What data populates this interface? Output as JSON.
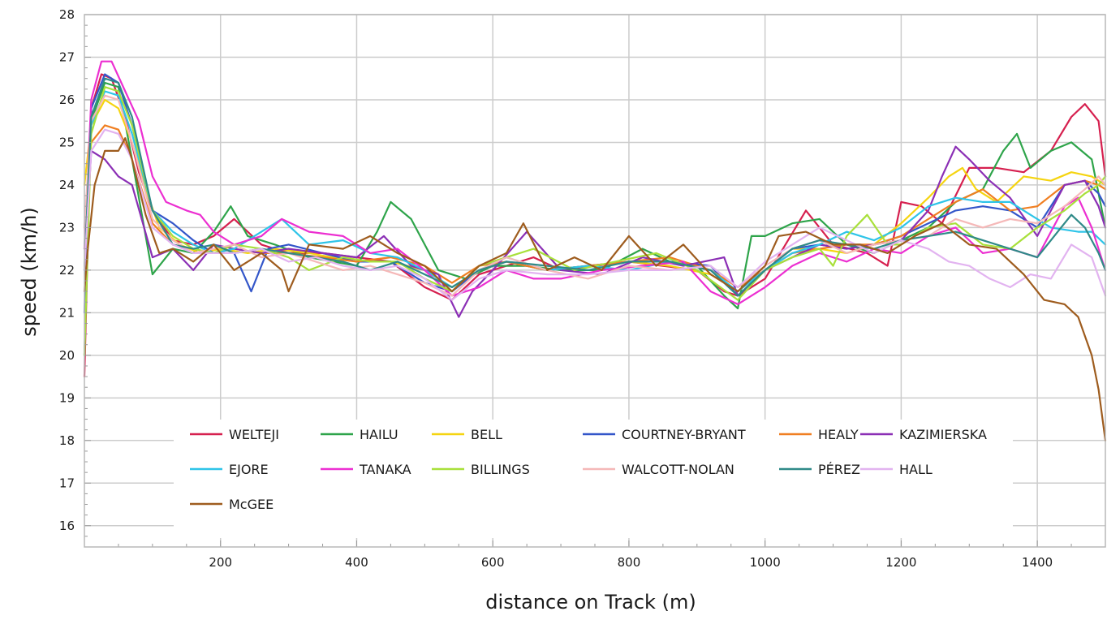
{
  "chart_data": {
    "type": "line",
    "xlabel": "distance on Track (m)",
    "ylabel": "speed (km/h)",
    "xlim": [
      0,
      1500
    ],
    "ylim": [
      15.5,
      28
    ],
    "x_ticks": [
      200,
      400,
      600,
      800,
      1000,
      1200,
      1400
    ],
    "y_ticks": [
      16,
      17,
      18,
      19,
      20,
      21,
      22,
      23,
      24,
      25,
      26,
      27,
      28
    ],
    "grid": true,
    "legend": {
      "placement": "bottom-left",
      "columns": 6
    },
    "series": [
      {
        "name": "WELTEJI",
        "color": "#d6204f",
        "x": [
          0,
          10,
          25,
          40,
          60,
          80,
          100,
          130,
          160,
          190,
          220,
          260,
          300,
          350,
          400,
          450,
          500,
          540,
          580,
          620,
          660,
          700,
          750,
          800,
          850,
          900,
          940,
          960,
          1000,
          1030,
          1060,
          1100,
          1150,
          1180,
          1200,
          1230,
          1260,
          1300,
          1340,
          1380,
          1420,
          1450,
          1470,
          1490,
          1500
        ],
        "y": [
          19.5,
          25.8,
          26.6,
          26.5,
          25.6,
          24.3,
          23.4,
          22.7,
          22.6,
          22.8,
          23.2,
          22.6,
          22.4,
          22.4,
          22.3,
          22.2,
          21.6,
          21.3,
          21.9,
          22.1,
          22.3,
          22.0,
          22.1,
          22.2,
          22.1,
          22.0,
          21.5,
          21.4,
          21.8,
          22.6,
          23.4,
          22.6,
          22.4,
          22.1,
          23.6,
          23.5,
          23.1,
          24.4,
          24.4,
          24.3,
          24.8,
          25.6,
          25.9,
          25.5,
          24.2
        ]
      },
      {
        "name": "HAILU",
        "color": "#2ea44a",
        "x": [
          0,
          10,
          30,
          50,
          70,
          90,
          100,
          130,
          160,
          190,
          215,
          240,
          280,
          330,
          400,
          430,
          450,
          480,
          520,
          560,
          600,
          650,
          700,
          760,
          820,
          860,
          900,
          940,
          960,
          980,
          1000,
          1040,
          1080,
          1120,
          1160,
          1200,
          1240,
          1280,
          1320,
          1350,
          1370,
          1390,
          1420,
          1450,
          1480,
          1500
        ],
        "y": [
          20.0,
          25.5,
          26.4,
          26.3,
          24.6,
          22.8,
          21.9,
          22.5,
          22.4,
          22.9,
          23.5,
          22.8,
          22.6,
          22.3,
          22.1,
          22.9,
          23.6,
          23.2,
          22.0,
          21.8,
          22.1,
          22.1,
          22.0,
          22.0,
          22.5,
          22.2,
          22.1,
          21.4,
          21.1,
          22.8,
          22.8,
          23.1,
          23.2,
          22.6,
          22.4,
          22.7,
          23.0,
          23.6,
          23.9,
          24.8,
          25.2,
          24.4,
          24.8,
          25.0,
          24.6,
          23.0
        ]
      },
      {
        "name": "BELL",
        "color": "#f5d410",
        "x": [
          0,
          10,
          30,
          50,
          70,
          90,
          110,
          140,
          170,
          200,
          240,
          280,
          330,
          400,
          450,
          500,
          540,
          580,
          620,
          680,
          740,
          800,
          860,
          920,
          960,
          1000,
          1040,
          1080,
          1120,
          1160,
          1200,
          1240,
          1270,
          1290,
          1310,
          1340,
          1380,
          1420,
          1450,
          1480,
          1500
        ],
        "y": [
          24.0,
          25.4,
          26.0,
          25.8,
          25.0,
          23.9,
          23.0,
          22.6,
          22.4,
          22.5,
          22.4,
          22.5,
          22.4,
          22.2,
          22.2,
          22.0,
          21.6,
          22.0,
          22.2,
          22.0,
          22.1,
          22.2,
          22.1,
          21.9,
          21.5,
          22.0,
          22.5,
          22.5,
          22.4,
          22.6,
          23.1,
          23.7,
          24.2,
          24.4,
          23.9,
          23.6,
          24.2,
          24.1,
          24.3,
          24.2,
          24.0
        ]
      },
      {
        "name": "COURTNEY-BRYANT",
        "color": "#3356c9",
        "x": [
          0,
          10,
          30,
          50,
          70,
          100,
          130,
          160,
          190,
          220,
          245,
          270,
          300,
          350,
          400,
          450,
          500,
          540,
          580,
          620,
          680,
          740,
          800,
          860,
          920,
          960,
          1000,
          1040,
          1080,
          1120,
          1160,
          1200,
          1240,
          1280,
          1320,
          1360,
          1400,
          1440,
          1470,
          1490,
          1500
        ],
        "y": [
          21.0,
          25.8,
          26.6,
          26.4,
          25.4,
          23.4,
          23.1,
          22.7,
          22.4,
          22.4,
          21.5,
          22.5,
          22.6,
          22.4,
          22.2,
          22.2,
          21.7,
          21.5,
          22.0,
          22.2,
          22.0,
          22.1,
          22.2,
          22.2,
          22.1,
          21.4,
          22.0,
          22.5,
          22.6,
          22.5,
          22.6,
          22.8,
          23.1,
          23.4,
          23.5,
          23.4,
          23.0,
          24.0,
          24.1,
          23.8,
          23.5
        ]
      },
      {
        "name": "HEALY",
        "color": "#f07f22",
        "x": [
          0,
          10,
          30,
          50,
          70,
          100,
          130,
          160,
          190,
          220,
          260,
          300,
          350,
          400,
          450,
          500,
          540,
          580,
          620,
          680,
          740,
          800,
          860,
          920,
          960,
          1000,
          1040,
          1080,
          1120,
          1160,
          1200,
          1240,
          1280,
          1320,
          1360,
          1400,
          1440,
          1470,
          1490,
          1500
        ],
        "y": [
          23.0,
          25.0,
          25.4,
          25.3,
          24.6,
          23.1,
          22.6,
          22.5,
          22.4,
          22.5,
          22.4,
          22.4,
          22.3,
          22.2,
          22.3,
          22.1,
          21.7,
          22.1,
          22.2,
          22.0,
          22.1,
          22.2,
          22.3,
          22.0,
          21.6,
          22.0,
          22.4,
          22.5,
          22.6,
          22.6,
          22.8,
          23.2,
          23.6,
          23.9,
          23.4,
          23.5,
          24.0,
          24.1,
          24.0,
          23.9
        ]
      },
      {
        "name": "KAZIMIERSKA",
        "color": "#8b2fb5",
        "x": [
          0,
          10,
          30,
          50,
          70,
          100,
          130,
          160,
          190,
          220,
          260,
          300,
          350,
          400,
          440,
          480,
          520,
          550,
          570,
          600,
          650,
          700,
          760,
          820,
          880,
          940,
          960,
          1000,
          1040,
          1080,
          1120,
          1160,
          1200,
          1240,
          1260,
          1280,
          1300,
          1330,
          1360,
          1400,
          1440,
          1470,
          1490,
          1500
        ],
        "y": [
          22.0,
          24.8,
          24.6,
          24.2,
          24.0,
          22.3,
          22.5,
          22.0,
          22.6,
          22.5,
          22.4,
          22.5,
          22.4,
          22.3,
          22.8,
          22.1,
          21.9,
          20.9,
          21.5,
          22.0,
          22.9,
          22.0,
          21.9,
          22.3,
          22.1,
          22.3,
          21.4,
          22.0,
          22.3,
          22.6,
          22.5,
          22.6,
          22.7,
          23.4,
          24.2,
          24.9,
          24.6,
          24.1,
          23.7,
          22.8,
          24.0,
          24.1,
          23.5,
          23.0
        ]
      },
      {
        "name": "EJORE",
        "color": "#2ec4e8",
        "x": [
          0,
          10,
          30,
          50,
          70,
          100,
          130,
          160,
          190,
          220,
          260,
          290,
          330,
          380,
          420,
          460,
          500,
          540,
          580,
          620,
          680,
          740,
          800,
          860,
          920,
          960,
          1000,
          1040,
          1080,
          1120,
          1160,
          1200,
          1240,
          1280,
          1320,
          1360,
          1390,
          1420,
          1460,
          1480,
          1500
        ],
        "y": [
          22.5,
          25.4,
          26.2,
          26.1,
          25.2,
          23.4,
          22.9,
          22.6,
          22.4,
          22.5,
          22.9,
          23.2,
          22.6,
          22.7,
          22.4,
          22.3,
          22.0,
          21.6,
          22.0,
          22.3,
          22.0,
          22.1,
          22.0,
          22.2,
          22.0,
          21.5,
          22.0,
          22.4,
          22.6,
          22.9,
          22.7,
          23.0,
          23.5,
          23.7,
          23.6,
          23.6,
          23.3,
          23.0,
          22.9,
          22.9,
          22.6
        ]
      },
      {
        "name": "TANAKA",
        "color": "#ec2fd1",
        "x": [
          0,
          10,
          25,
          40,
          60,
          80,
          100,
          120,
          150,
          170,
          190,
          220,
          260,
          290,
          330,
          380,
          420,
          460,
          500,
          540,
          580,
          620,
          660,
          700,
          760,
          820,
          880,
          920,
          960,
          1000,
          1040,
          1080,
          1120,
          1160,
          1200,
          1240,
          1280,
          1320,
          1360,
          1400,
          1440,
          1460,
          1480,
          1500
        ],
        "y": [
          22.5,
          26.0,
          26.9,
          26.9,
          26.2,
          25.5,
          24.2,
          23.6,
          23.4,
          23.3,
          22.9,
          22.6,
          22.8,
          23.2,
          22.9,
          22.8,
          22.4,
          22.5,
          22.0,
          21.4,
          21.6,
          22.0,
          21.8,
          21.8,
          22.0,
          22.1,
          22.2,
          21.5,
          21.2,
          21.6,
          22.1,
          22.4,
          22.2,
          22.5,
          22.4,
          22.8,
          23.0,
          22.4,
          22.5,
          22.3,
          23.5,
          23.7,
          23.0,
          22.0
        ]
      },
      {
        "name": "BILLINGS",
        "color": "#a8e03a",
        "x": [
          0,
          10,
          30,
          50,
          70,
          100,
          130,
          160,
          190,
          220,
          260,
          300,
          330,
          380,
          420,
          460,
          500,
          540,
          580,
          620,
          660,
          720,
          780,
          840,
          900,
          960,
          1000,
          1040,
          1080,
          1100,
          1120,
          1150,
          1180,
          1200,
          1240,
          1280,
          1320,
          1360,
          1400,
          1440,
          1470,
          1490,
          1500
        ],
        "y": [
          20.0,
          25.2,
          26.3,
          26.2,
          25.4,
          23.4,
          22.8,
          22.5,
          22.4,
          22.6,
          22.5,
          22.3,
          22.0,
          22.3,
          22.2,
          22.2,
          21.8,
          21.5,
          22.1,
          22.3,
          22.5,
          22.0,
          22.2,
          22.4,
          22.0,
          21.3,
          22.0,
          22.3,
          22.5,
          22.1,
          22.8,
          23.3,
          22.6,
          22.6,
          23.0,
          23.1,
          22.6,
          22.5,
          23.0,
          23.4,
          23.8,
          24.0,
          24.2
        ]
      },
      {
        "name": "WALCOTT-NOLAN",
        "color": "#f5b8b8",
        "x": [
          0,
          10,
          30,
          50,
          70,
          100,
          130,
          160,
          190,
          220,
          260,
          300,
          340,
          380,
          420,
          460,
          500,
          540,
          580,
          620,
          680,
          740,
          800,
          860,
          920,
          960,
          1000,
          1040,
          1080,
          1120,
          1160,
          1200,
          1240,
          1280,
          1320,
          1360,
          1400,
          1440,
          1470,
          1490,
          1500
        ],
        "y": [
          23.0,
          25.5,
          26.1,
          26.0,
          25.0,
          23.2,
          22.7,
          22.4,
          22.5,
          22.6,
          22.3,
          22.4,
          22.2,
          22.0,
          22.1,
          21.9,
          21.7,
          21.4,
          22.0,
          22.3,
          22.0,
          21.8,
          22.1,
          22.0,
          22.1,
          21.6,
          22.1,
          22.5,
          22.7,
          22.4,
          22.6,
          22.7,
          22.8,
          23.2,
          23.0,
          23.2,
          23.1,
          23.5,
          23.9,
          24.2,
          24.0
        ]
      },
      {
        "name": "PÉREZ",
        "color": "#2f8a88",
        "x": [
          0,
          10,
          30,
          50,
          70,
          100,
          130,
          160,
          190,
          220,
          260,
          300,
          340,
          380,
          420,
          460,
          500,
          540,
          580,
          620,
          680,
          740,
          800,
          860,
          920,
          960,
          1000,
          1040,
          1080,
          1120,
          1160,
          1200,
          1240,
          1280,
          1320,
          1360,
          1400,
          1430,
          1450,
          1470,
          1490,
          1500
        ],
        "y": [
          22.0,
          25.6,
          26.5,
          26.4,
          25.6,
          23.4,
          22.6,
          22.5,
          22.6,
          22.4,
          22.5,
          22.4,
          22.3,
          22.2,
          22.0,
          22.2,
          21.9,
          21.6,
          22.0,
          22.2,
          22.1,
          22.0,
          22.2,
          22.2,
          22.0,
          21.4,
          22.0,
          22.5,
          22.7,
          22.6,
          22.5,
          22.7,
          22.8,
          22.9,
          22.7,
          22.5,
          22.3,
          22.9,
          23.3,
          23.0,
          22.4,
          22.0
        ]
      },
      {
        "name": "HALL",
        "color": "#e2b3f0",
        "x": [
          0,
          10,
          30,
          50,
          70,
          100,
          130,
          160,
          190,
          220,
          260,
          300,
          340,
          380,
          420,
          460,
          500,
          540,
          580,
          620,
          680,
          740,
          800,
          860,
          920,
          960,
          1000,
          1040,
          1080,
          1120,
          1160,
          1200,
          1240,
          1270,
          1300,
          1330,
          1360,
          1390,
          1420,
          1450,
          1480,
          1500
        ],
        "y": [
          22.0,
          24.8,
          25.3,
          25.2,
          24.6,
          23.0,
          22.6,
          22.4,
          22.4,
          22.4,
          22.5,
          22.2,
          22.3,
          22.1,
          22.0,
          22.1,
          21.8,
          21.3,
          21.8,
          22.0,
          21.9,
          21.9,
          22.0,
          22.0,
          22.1,
          21.6,
          22.2,
          22.6,
          23.0,
          22.7,
          22.4,
          22.7,
          22.5,
          22.2,
          22.1,
          21.8,
          21.6,
          21.9,
          21.8,
          22.6,
          22.3,
          21.4
        ]
      },
      {
        "name": "McGEE",
        "color": "#9e5c1e",
        "x": [
          0,
          5,
          15,
          30,
          50,
          60,
          70,
          90,
          110,
          130,
          160,
          190,
          220,
          260,
          290,
          300,
          330,
          380,
          420,
          460,
          500,
          540,
          580,
          620,
          645,
          680,
          720,
          760,
          800,
          840,
          880,
          920,
          960,
          1000,
          1020,
          1060,
          1100,
          1140,
          1180,
          1220,
          1260,
          1300,
          1340,
          1380,
          1410,
          1440,
          1460,
          1480,
          1490,
          1500
        ],
        "y": [
          21.5,
          22.5,
          24.0,
          24.8,
          24.8,
          25.1,
          24.6,
          23.3,
          22.4,
          22.5,
          22.2,
          22.6,
          22.0,
          22.4,
          22.0,
          21.5,
          22.6,
          22.5,
          22.8,
          22.4,
          22.1,
          21.5,
          22.1,
          22.4,
          23.1,
          22.0,
          22.3,
          22.0,
          22.8,
          22.1,
          22.6,
          21.9,
          21.5,
          22.1,
          22.8,
          22.9,
          22.6,
          22.6,
          22.4,
          22.8,
          23.1,
          22.6,
          22.5,
          21.9,
          21.3,
          21.2,
          20.9,
          20.0,
          19.2,
          18.0
        ]
      }
    ]
  }
}
